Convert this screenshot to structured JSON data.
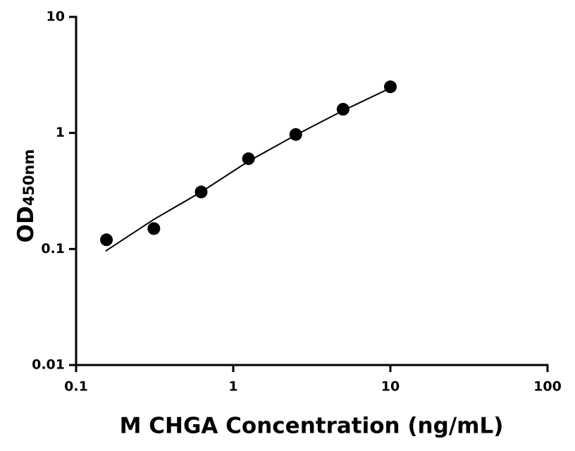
{
  "chart_data": {
    "type": "scatter",
    "x_label": "M CHGA Concentration (ng/mL)",
    "y_label": "OD",
    "y_label_subscript": "450nm",
    "xscale": "log",
    "yscale": "log",
    "xlim": [
      0.1,
      100
    ],
    "ylim": [
      0.01,
      10
    ],
    "xticks": [
      0.1,
      1,
      10,
      100
    ],
    "yticks": [
      0.01,
      0.1,
      1,
      10
    ],
    "series": [
      {
        "mode": "markers",
        "color": "#000000",
        "x": [
          0.156,
          0.3125,
          0.625,
          1.25,
          2.5,
          5,
          10
        ],
        "values": [
          0.12,
          0.15,
          0.31,
          0.6,
          0.97,
          1.6,
          2.5
        ]
      },
      {
        "mode": "line",
        "color": "#000000",
        "x": [
          0.154,
          0.3125,
          0.625,
          1.25,
          2.5,
          5,
          10
        ],
        "values": [
          0.096,
          0.18,
          0.31,
          0.57,
          0.96,
          1.56,
          2.44
        ]
      }
    ]
  }
}
